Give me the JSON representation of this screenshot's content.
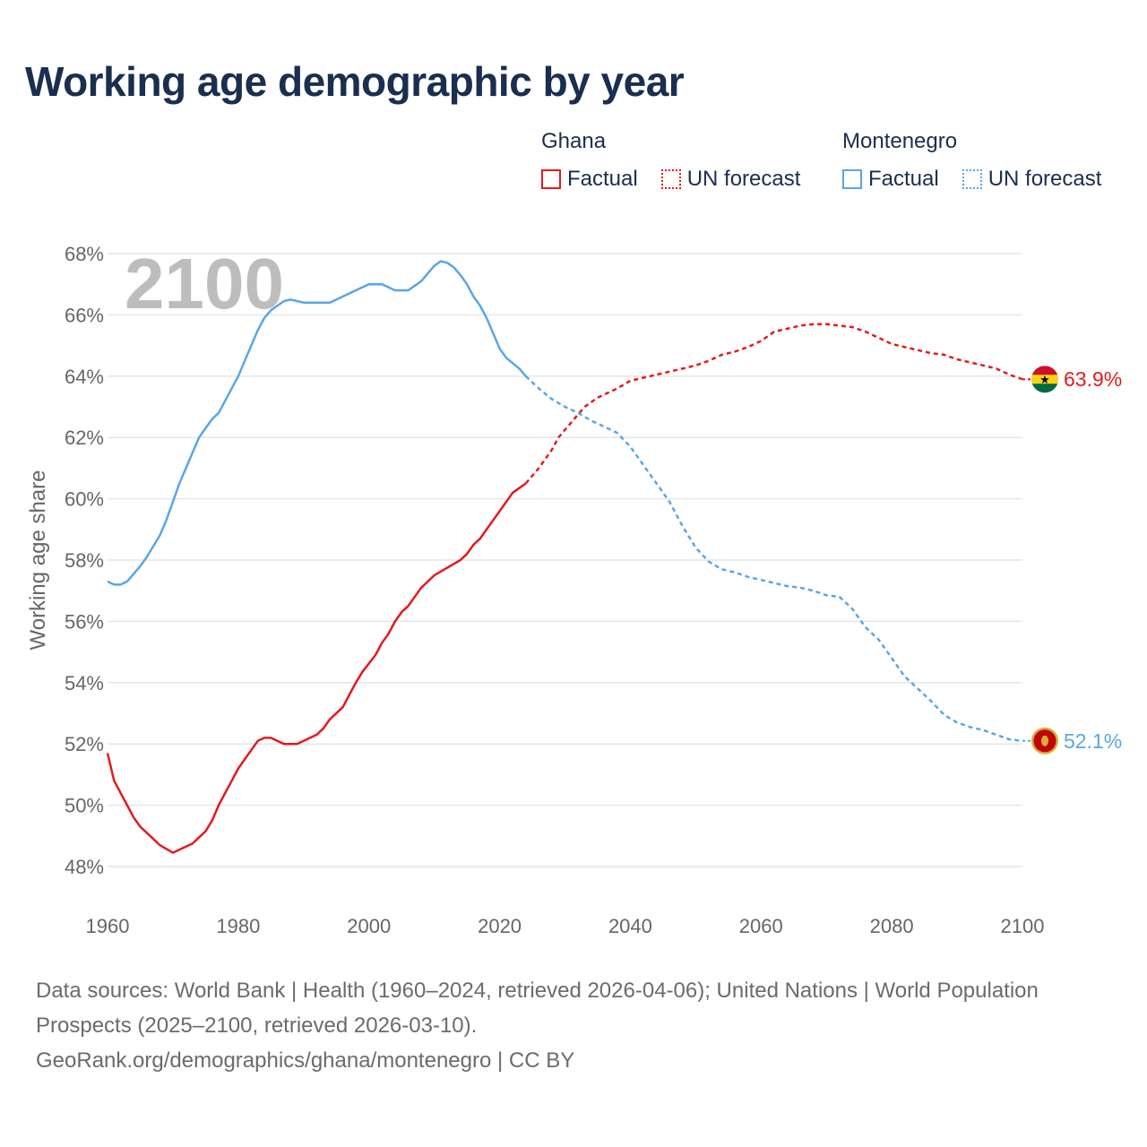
{
  "title": "Working age demographic by year",
  "legend": {
    "groups": [
      {
        "name": "Ghana",
        "factual": "Factual",
        "forecast": "UN forecast",
        "color": "#e41a1c"
      },
      {
        "name": "Montenegro",
        "factual": "Factual",
        "forecast": "UN forecast",
        "color": "#5aa6e6"
      }
    ]
  },
  "source_text": "Data sources: World Bank | Health (1960–2024, retrieved 2026-04-06); United Nations | World Population Prospects (2025–2100, retrieved 2026-03-10).",
  "credit_text": "GeoRank.org/demographics/ghana/montenegro | CC BY",
  "chart_data": {
    "type": "line",
    "title": "Working age demographic by year",
    "year_label": "2100",
    "xlabel": "",
    "ylabel": "Working age share",
    "xlim": [
      1960,
      2100
    ],
    "ylim": [
      47.5,
      68.5
    ],
    "x_ticks": [
      "1960",
      "1980",
      "2000",
      "2020",
      "2040",
      "2060",
      "2080",
      "2100"
    ],
    "y_ticks": [
      "48%",
      "50%",
      "52%",
      "54%",
      "56%",
      "58%",
      "60%",
      "62%",
      "64%",
      "66%",
      "68%"
    ],
    "grid": true,
    "forecast_start": 2024,
    "series": [
      {
        "name": "Ghana",
        "color": "#e41a1c",
        "end_label": "63.9%",
        "points": [
          [
            1960,
            51.7
          ],
          [
            1961,
            50.8
          ],
          [
            1963,
            50.0
          ],
          [
            1964,
            49.6
          ],
          [
            1965,
            49.3
          ],
          [
            1967,
            48.9
          ],
          [
            1968,
            48.7
          ],
          [
            1970,
            48.45
          ],
          [
            1972,
            48.65
          ],
          [
            1973,
            48.75
          ],
          [
            1975,
            49.15
          ],
          [
            1976,
            49.5
          ],
          [
            1977,
            50.0
          ],
          [
            1980,
            51.2
          ],
          [
            1981,
            51.5
          ],
          [
            1983,
            52.1
          ],
          [
            1984,
            52.2
          ],
          [
            1985,
            52.2
          ],
          [
            1987,
            52.0
          ],
          [
            1989,
            52.0
          ],
          [
            1992,
            52.3
          ],
          [
            1993,
            52.5
          ],
          [
            1994,
            52.8
          ],
          [
            1996,
            53.2
          ],
          [
            1997,
            53.6
          ],
          [
            1998,
            54.0
          ],
          [
            1999,
            54.35
          ],
          [
            2001,
            54.9
          ],
          [
            2002,
            55.3
          ],
          [
            2003,
            55.6
          ],
          [
            2004,
            56.0
          ],
          [
            2005,
            56.3
          ],
          [
            2006,
            56.5
          ],
          [
            2008,
            57.1
          ],
          [
            2010,
            57.5
          ],
          [
            2012,
            57.75
          ],
          [
            2014,
            58.0
          ],
          [
            2015,
            58.2
          ],
          [
            2016,
            58.5
          ],
          [
            2017,
            58.7
          ],
          [
            2018,
            59.0
          ],
          [
            2020,
            59.6
          ],
          [
            2022,
            60.2
          ],
          [
            2024,
            60.5
          ],
          [
            2026,
            61.0
          ],
          [
            2028,
            61.6
          ],
          [
            2029,
            62.0
          ],
          [
            2031,
            62.5
          ],
          [
            2033,
            63.0
          ],
          [
            2035,
            63.3
          ],
          [
            2038,
            63.6
          ],
          [
            2040,
            63.85
          ],
          [
            2042,
            63.95
          ],
          [
            2044,
            64.05
          ],
          [
            2046,
            64.15
          ],
          [
            2048,
            64.25
          ],
          [
            2050,
            64.35
          ],
          [
            2052,
            64.5
          ],
          [
            2054,
            64.7
          ],
          [
            2056,
            64.8
          ],
          [
            2058,
            64.95
          ],
          [
            2060,
            65.15
          ],
          [
            2062,
            65.45
          ],
          [
            2064,
            65.55
          ],
          [
            2066,
            65.65
          ],
          [
            2068,
            65.7
          ],
          [
            2070,
            65.7
          ],
          [
            2072,
            65.65
          ],
          [
            2074,
            65.6
          ],
          [
            2076,
            65.45
          ],
          [
            2078,
            65.25
          ],
          [
            2080,
            65.05
          ],
          [
            2082,
            64.95
          ],
          [
            2084,
            64.85
          ],
          [
            2086,
            64.75
          ],
          [
            2088,
            64.7
          ],
          [
            2090,
            64.55
          ],
          [
            2092,
            64.45
          ],
          [
            2094,
            64.35
          ],
          [
            2096,
            64.25
          ],
          [
            2098,
            64.05
          ],
          [
            2100,
            63.9
          ]
        ]
      },
      {
        "name": "Montenegro",
        "color": "#5aa6e6",
        "end_label": "52.1%",
        "points": [
          [
            1960,
            57.3
          ],
          [
            1961,
            57.2
          ],
          [
            1962,
            57.2
          ],
          [
            1963,
            57.3
          ],
          [
            1965,
            57.8
          ],
          [
            1966,
            58.1
          ],
          [
            1968,
            58.8
          ],
          [
            1969,
            59.3
          ],
          [
            1971,
            60.5
          ],
          [
            1973,
            61.5
          ],
          [
            1974,
            62.0
          ],
          [
            1975,
            62.3
          ],
          [
            1976,
            62.6
          ],
          [
            1977,
            62.8
          ],
          [
            1978,
            63.2
          ],
          [
            1980,
            64.0
          ],
          [
            1981,
            64.5
          ],
          [
            1982,
            65.0
          ],
          [
            1983,
            65.5
          ],
          [
            1984,
            65.9
          ],
          [
            1985,
            66.15
          ],
          [
            1986,
            66.3
          ],
          [
            1987,
            66.45
          ],
          [
            1988,
            66.5
          ],
          [
            1989,
            66.45
          ],
          [
            1990,
            66.4
          ],
          [
            1992,
            66.4
          ],
          [
            1994,
            66.4
          ],
          [
            1996,
            66.6
          ],
          [
            1998,
            66.8
          ],
          [
            2000,
            67.0
          ],
          [
            2002,
            67.0
          ],
          [
            2004,
            66.8
          ],
          [
            2006,
            66.8
          ],
          [
            2008,
            67.1
          ],
          [
            2009,
            67.35
          ],
          [
            2010,
            67.6
          ],
          [
            2011,
            67.75
          ],
          [
            2012,
            67.7
          ],
          [
            2013,
            67.55
          ],
          [
            2014,
            67.3
          ],
          [
            2015,
            67.0
          ],
          [
            2016,
            66.6
          ],
          [
            2017,
            66.3
          ],
          [
            2018,
            65.9
          ],
          [
            2019,
            65.4
          ],
          [
            2020,
            64.9
          ],
          [
            2021,
            64.6
          ],
          [
            2023,
            64.25
          ],
          [
            2024,
            64.0
          ],
          [
            2026,
            63.6
          ],
          [
            2028,
            63.25
          ],
          [
            2030,
            63.0
          ],
          [
            2032,
            62.8
          ],
          [
            2034,
            62.55
          ],
          [
            2036,
            62.35
          ],
          [
            2038,
            62.15
          ],
          [
            2040,
            61.7
          ],
          [
            2042,
            61.1
          ],
          [
            2044,
            60.5
          ],
          [
            2046,
            59.9
          ],
          [
            2048,
            59.1
          ],
          [
            2050,
            58.4
          ],
          [
            2052,
            57.95
          ],
          [
            2054,
            57.7
          ],
          [
            2056,
            57.6
          ],
          [
            2058,
            57.45
          ],
          [
            2060,
            57.35
          ],
          [
            2062,
            57.25
          ],
          [
            2064,
            57.15
          ],
          [
            2066,
            57.1
          ],
          [
            2068,
            57.0
          ],
          [
            2070,
            56.85
          ],
          [
            2072,
            56.8
          ],
          [
            2074,
            56.4
          ],
          [
            2076,
            55.8
          ],
          [
            2078,
            55.4
          ],
          [
            2080,
            54.8
          ],
          [
            2082,
            54.2
          ],
          [
            2084,
            53.8
          ],
          [
            2086,
            53.4
          ],
          [
            2088,
            52.95
          ],
          [
            2090,
            52.7
          ],
          [
            2092,
            52.55
          ],
          [
            2094,
            52.45
          ],
          [
            2096,
            52.3
          ],
          [
            2098,
            52.15
          ],
          [
            2100,
            52.1
          ]
        ]
      }
    ]
  }
}
